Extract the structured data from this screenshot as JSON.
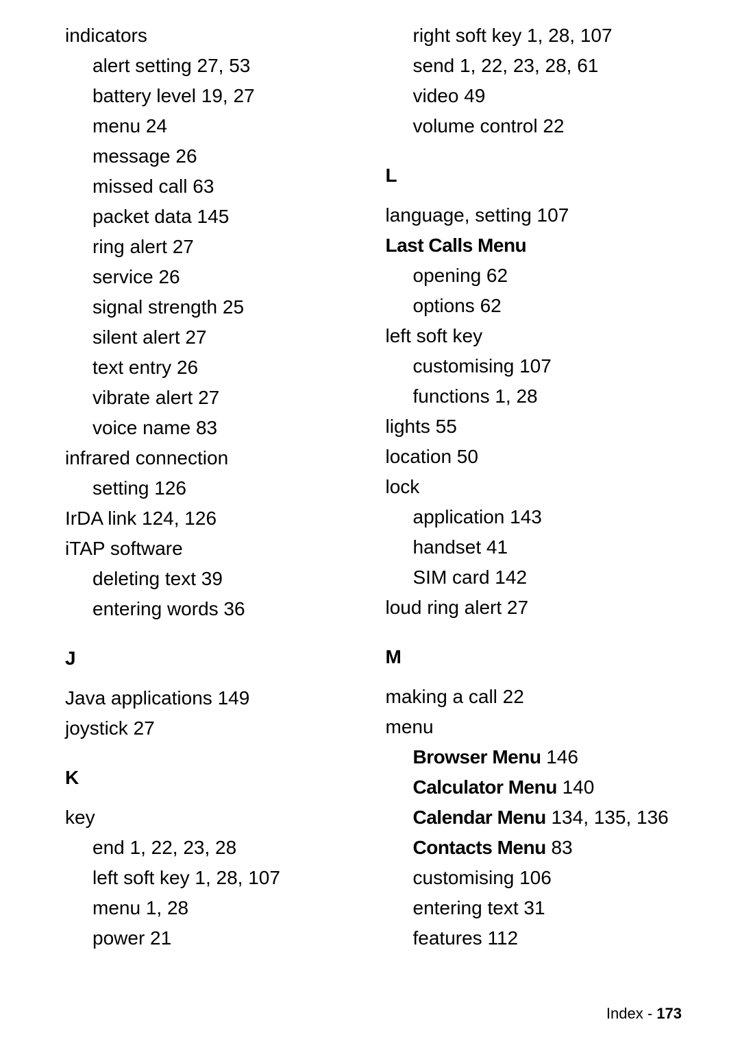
{
  "page": {
    "footer_label": "Index",
    "footer_separator": " - ",
    "footer_page": "173"
  },
  "left": [
    {
      "type": "entry",
      "text": "indicators"
    },
    {
      "type": "sub",
      "text": "alert setting  27, 53"
    },
    {
      "type": "sub",
      "text": "battery level  19, 27"
    },
    {
      "type": "sub",
      "text": "menu  24"
    },
    {
      "type": "sub",
      "text": "message  26"
    },
    {
      "type": "sub",
      "text": "missed call  63"
    },
    {
      "type": "sub",
      "text": "packet data  145"
    },
    {
      "type": "sub",
      "text": "ring alert  27"
    },
    {
      "type": "sub",
      "text": "service  26"
    },
    {
      "type": "sub",
      "text": "signal strength  25"
    },
    {
      "type": "sub",
      "text": "silent alert  27"
    },
    {
      "type": "sub",
      "text": "text entry  26"
    },
    {
      "type": "sub",
      "text": "vibrate alert  27"
    },
    {
      "type": "sub",
      "text": "voice name  83"
    },
    {
      "type": "entry",
      "text": "infrared connection"
    },
    {
      "type": "sub",
      "text": "setting  126"
    },
    {
      "type": "entry",
      "text": "IrDA link  124, 126"
    },
    {
      "type": "entry",
      "text": "iTAP software"
    },
    {
      "type": "sub",
      "text": "deleting text  39"
    },
    {
      "type": "sub",
      "text": "entering words  36"
    },
    {
      "type": "heading",
      "text": "J"
    },
    {
      "type": "entry",
      "text": "Java applications  149"
    },
    {
      "type": "entry",
      "text": "joystick  27"
    },
    {
      "type": "heading",
      "text": "K"
    },
    {
      "type": "entry",
      "text": "key"
    },
    {
      "type": "sub",
      "text": "end  1, 22, 23, 28"
    },
    {
      "type": "sub",
      "text": "left soft key  1, 28, 107"
    },
    {
      "type": "sub",
      "text": "menu  1, 28"
    },
    {
      "type": "sub",
      "text": "power  21"
    }
  ],
  "right": [
    {
      "type": "sub",
      "text": "right soft key  1, 28, 107"
    },
    {
      "type": "sub",
      "text": "send  1, 22, 23, 28, 61"
    },
    {
      "type": "sub",
      "text": "video  49"
    },
    {
      "type": "sub",
      "text": "volume control  22"
    },
    {
      "type": "heading",
      "text": "L"
    },
    {
      "type": "entry",
      "text": "language, setting  107"
    },
    {
      "type": "entry",
      "bold_label": "Last Calls Menu"
    },
    {
      "type": "sub",
      "text": "opening  62"
    },
    {
      "type": "sub",
      "text": "options  62"
    },
    {
      "type": "entry",
      "text": "left soft key"
    },
    {
      "type": "sub",
      "text": "customising  107"
    },
    {
      "type": "sub",
      "text": "functions  1, 28"
    },
    {
      "type": "entry",
      "text": "lights  55"
    },
    {
      "type": "entry",
      "text": "location  50"
    },
    {
      "type": "entry",
      "text": "lock"
    },
    {
      "type": "sub",
      "text": "application  143"
    },
    {
      "type": "sub",
      "text": "handset  41"
    },
    {
      "type": "sub",
      "text": "SIM card  142"
    },
    {
      "type": "entry",
      "text": "loud ring alert  27"
    },
    {
      "type": "heading",
      "text": "M"
    },
    {
      "type": "entry",
      "text": "making a call  22"
    },
    {
      "type": "entry",
      "text": "menu"
    },
    {
      "type": "sub",
      "bold_label": "Browser Menu",
      "after": "  146"
    },
    {
      "type": "sub",
      "bold_label": "Calculator Menu",
      "after": "  140"
    },
    {
      "type": "sub",
      "bold_label": "Calendar Menu",
      "after": "  134, 135, 136"
    },
    {
      "type": "sub",
      "bold_label": "Contacts Menu",
      "after": "  83"
    },
    {
      "type": "sub",
      "text": "customising  106"
    },
    {
      "type": "sub",
      "text": "entering text  31"
    },
    {
      "type": "sub",
      "text": "features  112"
    }
  ]
}
